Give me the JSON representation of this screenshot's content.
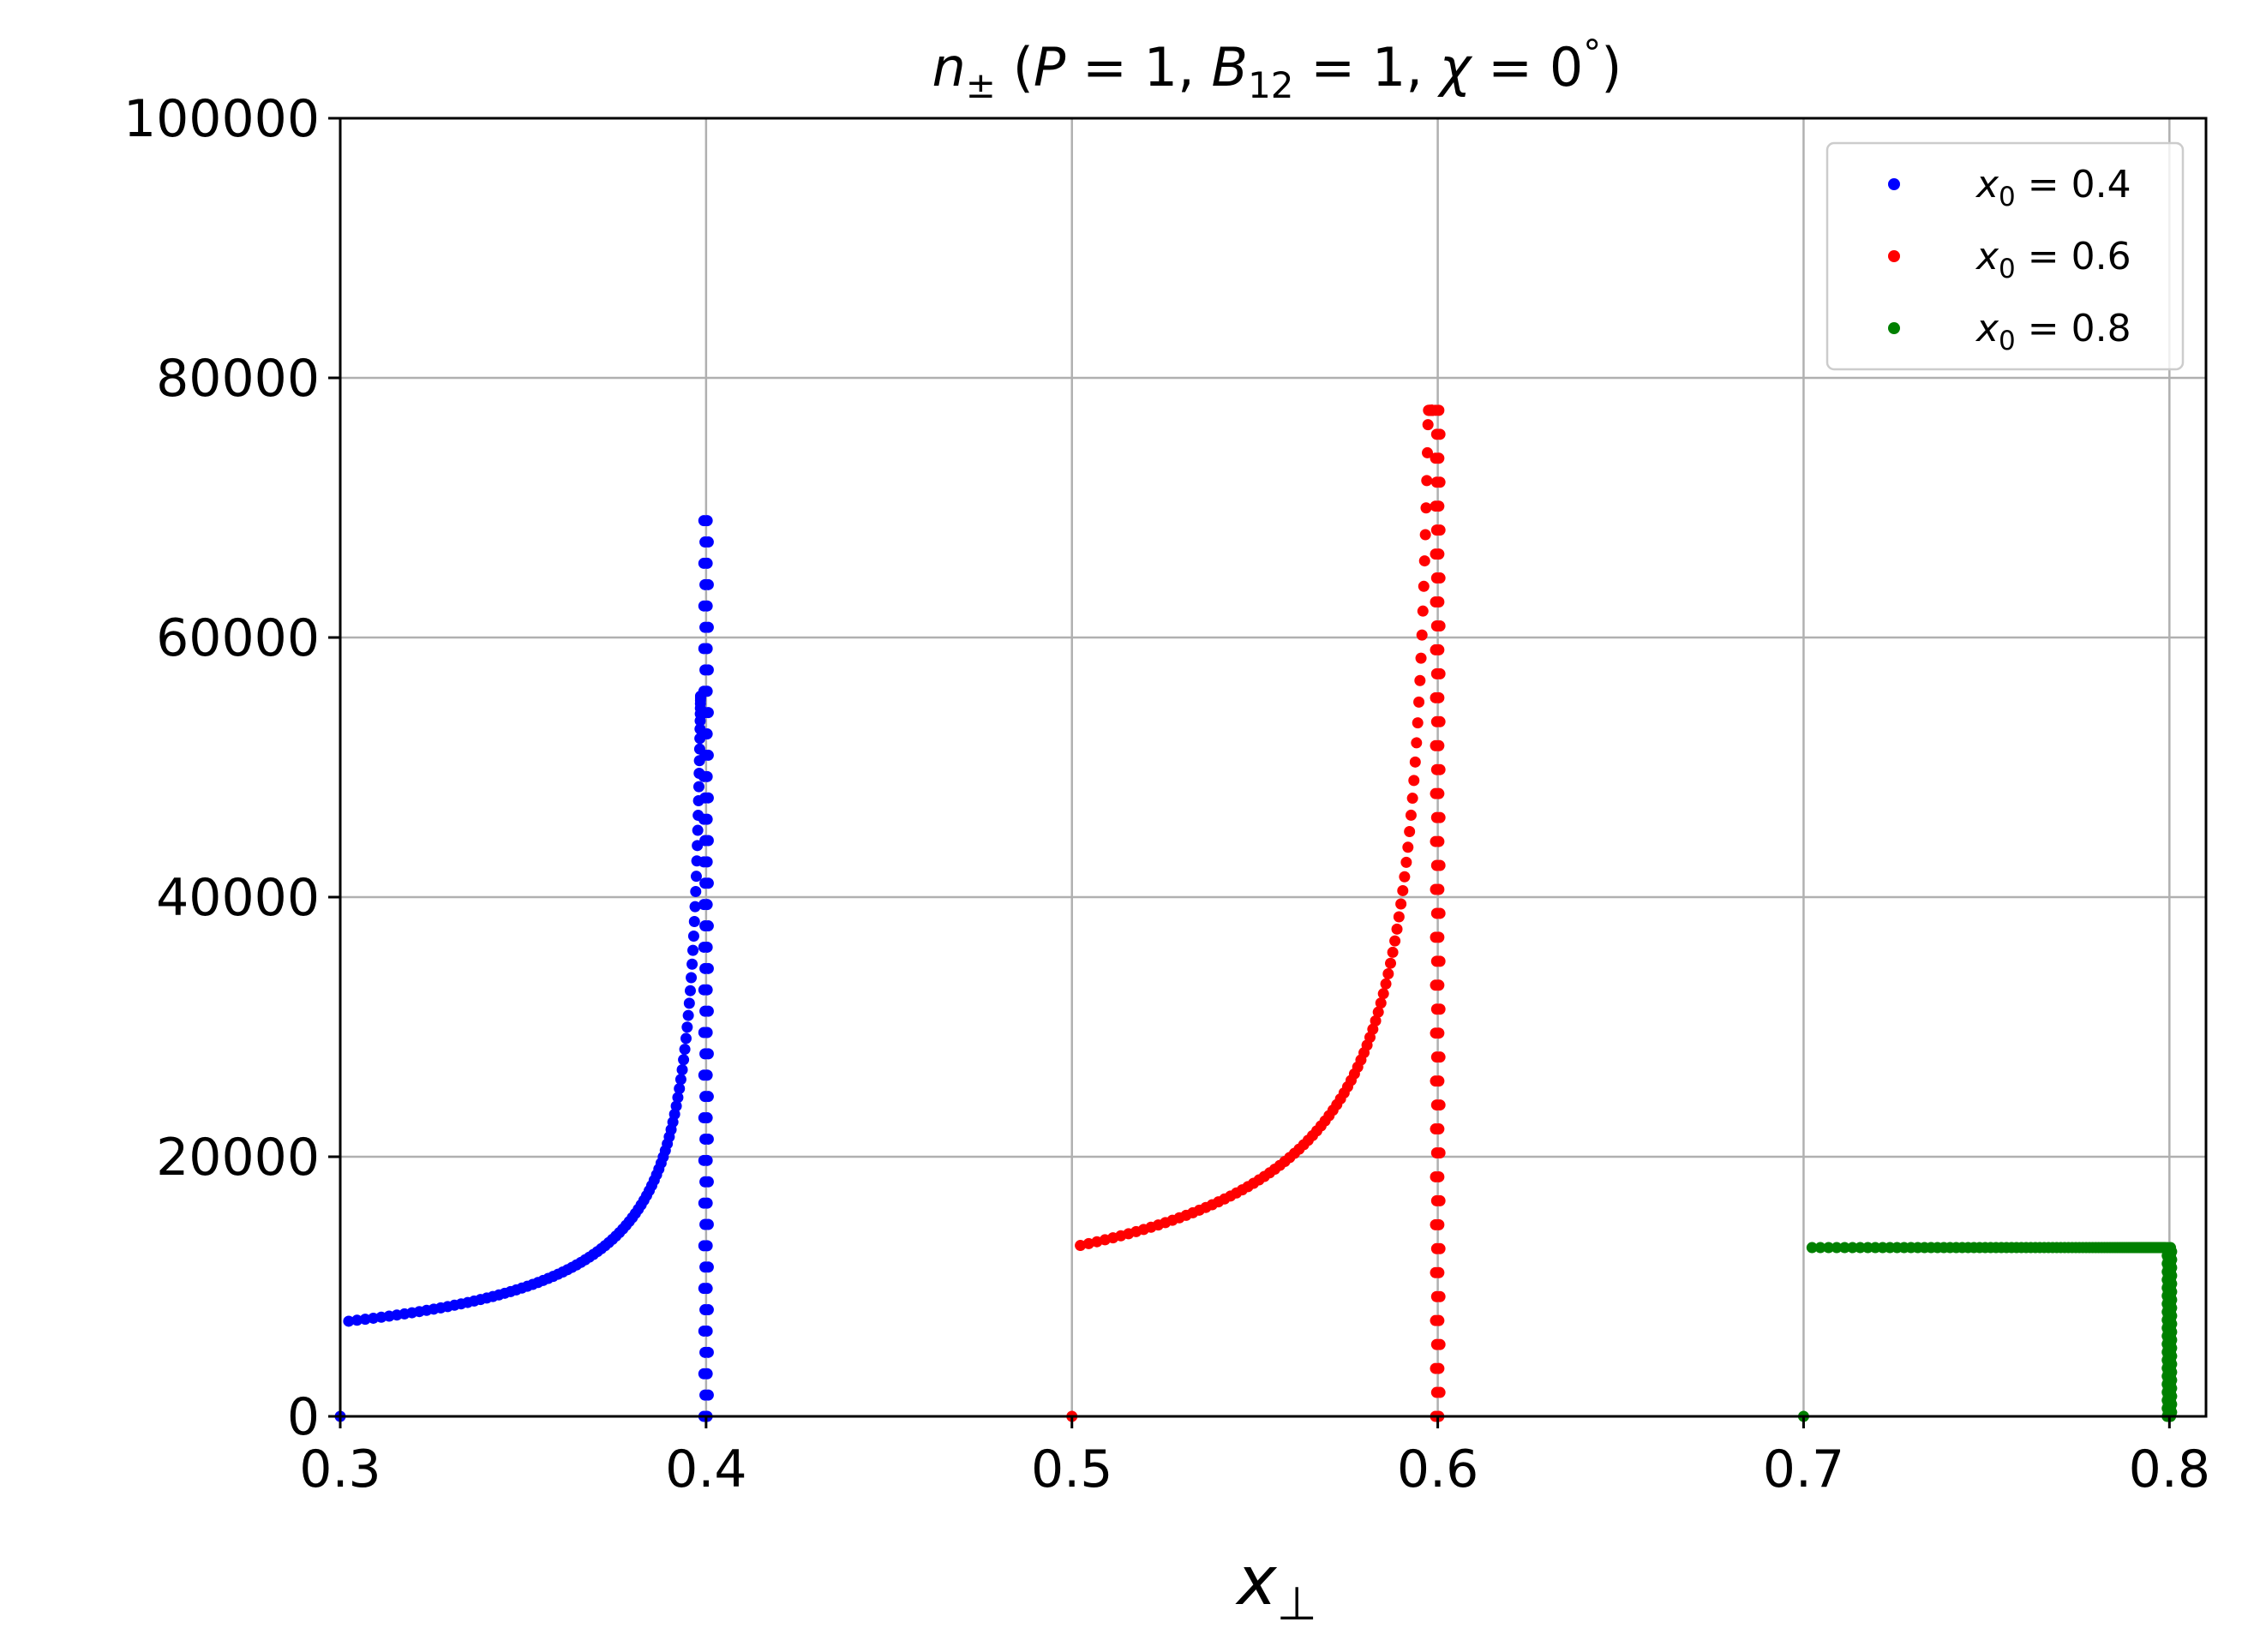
{
  "chart_data": {
    "type": "scatter",
    "title": {
      "n": "n",
      "pm": "±",
      "open": " (",
      "P": "P",
      "eq1": " = 1, ",
      "B": "B",
      "sub12": "12",
      "eq2": " = 1, ",
      "chi": "χ",
      "eq3": " = 0",
      "deg": "°",
      "close": ")"
    },
    "xlabel": {
      "main": "x",
      "sub": "⊥"
    },
    "ylabel": "",
    "xlim": [
      0.3,
      0.81
    ],
    "ylim": [
      0,
      100000
    ],
    "xticks": [
      "0.3",
      "0.4",
      "0.5",
      "0.6",
      "0.7",
      "0.8"
    ],
    "yticks": [
      "0",
      "20000",
      "40000",
      "60000",
      "80000",
      "100000"
    ],
    "grid": true,
    "legend_position": "top-right",
    "series": [
      {
        "name": "x0 = 0.4",
        "legend_var": "x",
        "legend_sub": "0",
        "legend_val": " = 0.4",
        "color": "#0000ff",
        "x0": 0.4,
        "x_start": 0.3,
        "peak": 69000
      },
      {
        "name": "x0 = 0.6",
        "legend_var": "x",
        "legend_sub": "0",
        "legend_val": " = 0.6",
        "color": "#ff0000",
        "x0": 0.6,
        "x_start": 0.5,
        "peak": 77500
      },
      {
        "name": "x0 = 0.8",
        "legend_var": "x",
        "legend_sub": "0",
        "legend_val": " = 0.8",
        "color": "#008000",
        "x0": 0.8,
        "x_start": 0.7,
        "peak": 13000
      }
    ]
  }
}
